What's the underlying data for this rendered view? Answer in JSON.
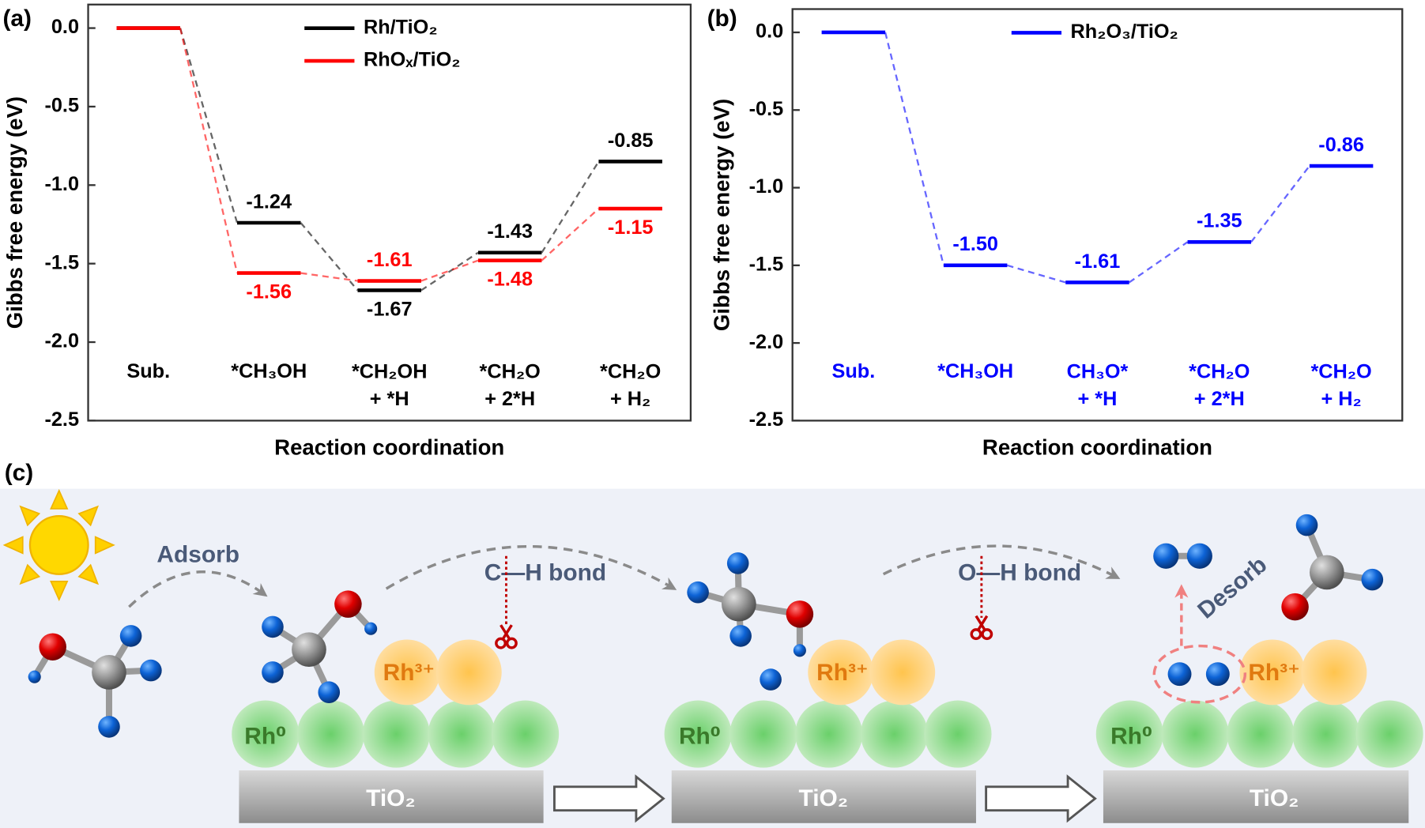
{
  "chart_data": [
    {
      "type": "energy_levels",
      "panel_label": "(a)",
      "xlabel": "Reaction coordination",
      "ylabel": "Gibbs free energy (eV)",
      "categories": [
        "Sub.",
        "*CH₃OH",
        "*CH₂OH\n+ *H",
        "*CH₂O\n+ 2*H",
        "*CH₂O\n+ H₂"
      ],
      "category_color": "#000000",
      "series": [
        {
          "name": "Rh/TiO₂",
          "color": "#000000",
          "values": [
            0,
            -1.24,
            -1.67,
            -1.43,
            -0.85
          ],
          "value_labels": [
            null,
            "-1.24",
            "-1.67",
            "-1.43",
            "-0.85"
          ]
        },
        {
          "name": "RhOₓ/TiO₂",
          "color": "#ff0000",
          "values": [
            0,
            -1.56,
            -1.61,
            -1.48,
            -1.15
          ],
          "value_labels": [
            null,
            "-1.56",
            "-1.61",
            "-1.48",
            "-1.15"
          ]
        }
      ],
      "ylim": [
        -2.5,
        0.15
      ],
      "yticks": [
        {
          "value": 0,
          "label": "0.0"
        },
        -0.5,
        {
          "value": -1,
          "label": "-1.0"
        },
        -1.5,
        {
          "value": -2,
          "label": "-2.0"
        },
        -2.5
      ],
      "legend": "top"
    },
    {
      "type": "energy_levels",
      "panel_label": "(b)",
      "xlabel": "Reaction coordination",
      "ylabel": "Gibbs free energy (eV)",
      "categories": [
        "Sub.",
        "*CH₃OH",
        "CH₃O*\n+ *H",
        "*CH₂O\n+ 2*H",
        "*CH₂O\n+ H₂"
      ],
      "category_color": "#0000ff",
      "series": [
        {
          "name": "Rh₂O₃/TiO₂",
          "color": "#0000ff",
          "values": [
            0,
            -1.5,
            -1.61,
            -1.35,
            -0.86
          ],
          "value_labels": [
            null,
            "-1.50",
            "-1.61",
            "-1.35",
            "-0.86"
          ]
        }
      ],
      "ylim": [
        -2.5,
        0.15
      ],
      "yticks": [
        {
          "value": 0,
          "label": "0.0"
        },
        -0.5,
        {
          "value": -1,
          "label": "-1.0"
        },
        -1.5,
        {
          "value": -2,
          "label": "-2.0"
        },
        -2.5
      ],
      "legend": "top"
    }
  ],
  "schematic": {
    "panel_label": "(c)",
    "adsorb": "Adsorb",
    "bond_1": "C—H bond",
    "bond_2": "O—H bond",
    "desorb": "Desorb",
    "rh0": [
      "Rh⁰",
      "Rh⁰",
      "Rh⁰"
    ],
    "rh3": [
      "Rh³⁺",
      "Rh³⁺",
      "Rh³⁺"
    ],
    "support": [
      "TiO₂",
      "TiO₂",
      "TiO₂"
    ]
  }
}
